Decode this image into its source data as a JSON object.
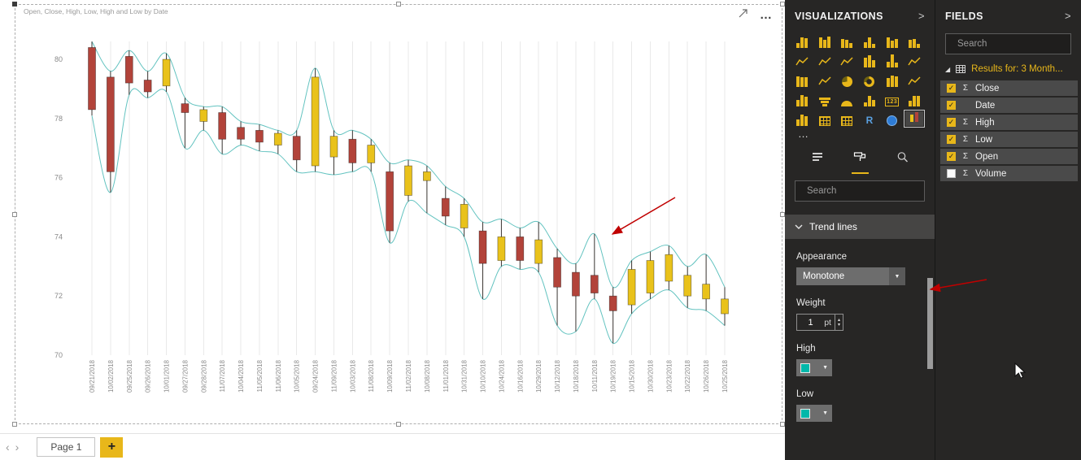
{
  "glyphs": {
    "chevron_right": ">",
    "more_options": "…",
    "icon_ellipsis": "…",
    "dropdown_arrow": "▼",
    "spinner_up": "▴",
    "spinner_down": "▾",
    "check": "✓",
    "sigma": "Σ",
    "expand_triangle": "◢",
    "nav_prev": "‹",
    "nav_next": "›"
  },
  "colors": {
    "accent": "#E8B71A",
    "candle_up": "#E9C21B",
    "candle_down": "#B2433A",
    "candle_outline": "#3a3633",
    "trend_line": "#63C3C0",
    "annotation_arrow": "#C00000",
    "swatch_teal": "#01B8AA"
  },
  "canvas": {
    "page_tab_label": "Page 1",
    "add_page_label": "+"
  },
  "chart_data": {
    "type": "candlestick",
    "title": "Open, Close, High, Low, High and Low by Date",
    "ylim": [
      69.8,
      81.0
    ],
    "yticks": [
      70,
      72,
      74,
      76,
      78,
      80
    ],
    "grid": "vertical",
    "legend": "none",
    "trend_lines": {
      "upper": "High",
      "lower": "Low",
      "interpolation": "Monotone",
      "weight_pt": 1
    },
    "categories": [
      "09/21/2018",
      "10/02/2018",
      "09/25/2018",
      "09/26/2018",
      "10/01/2018",
      "09/27/2018",
      "09/28/2018",
      "11/07/2018",
      "10/04/2018",
      "11/05/2018",
      "11/06/2018",
      "10/05/2018",
      "09/24/2018",
      "11/09/2018",
      "10/03/2018",
      "11/08/2018",
      "10/09/2018",
      "11/02/2018",
      "10/08/2018",
      "11/01/2018",
      "10/31/2018",
      "10/10/2018",
      "10/24/2018",
      "10/16/2018",
      "10/29/2018",
      "10/12/2018",
      "10/18/2018",
      "10/11/2018",
      "10/19/2018",
      "10/15/2018",
      "10/30/2018",
      "10/23/2018",
      "10/22/2018",
      "10/26/2018",
      "10/25/2018"
    ],
    "open": [
      80.4,
      79.4,
      80.1,
      79.3,
      79.1,
      78.5,
      77.9,
      78.2,
      77.7,
      77.6,
      77.1,
      77.4,
      76.4,
      76.7,
      77.3,
      76.5,
      76.2,
      75.4,
      75.9,
      75.3,
      74.3,
      74.2,
      73.2,
      74.0,
      73.1,
      73.3,
      72.8,
      72.7,
      72.0,
      71.7,
      72.1,
      72.5,
      72.0,
      71.9,
      71.4
    ],
    "high": [
      80.6,
      79.6,
      80.3,
      79.6,
      80.2,
      78.7,
      78.4,
      78.4,
      77.9,
      77.8,
      77.6,
      77.6,
      79.7,
      77.6,
      77.6,
      77.3,
      76.5,
      76.6,
      76.4,
      75.7,
      75.3,
      74.5,
      74.6,
      74.3,
      74.5,
      73.6,
      73.1,
      74.1,
      72.3,
      73.2,
      73.5,
      73.7,
      73.0,
      73.4,
      72.3
    ],
    "low": [
      78.1,
      75.5,
      78.8,
      78.7,
      78.9,
      77.0,
      77.6,
      76.8,
      77.1,
      76.9,
      76.8,
      76.2,
      76.2,
      76.1,
      76.2,
      76.2,
      73.8,
      75.2,
      74.8,
      74.4,
      74.0,
      71.9,
      73.0,
      72.9,
      72.8,
      71.0,
      70.8,
      71.9,
      70.4,
      71.4,
      71.9,
      72.2,
      71.6,
      71.5,
      71.0
    ],
    "close": [
      78.3,
      76.2,
      79.2,
      78.9,
      80.0,
      78.2,
      78.3,
      77.3,
      77.3,
      77.2,
      77.5,
      76.6,
      79.4,
      77.4,
      76.5,
      77.1,
      74.2,
      76.4,
      76.2,
      74.7,
      75.1,
      73.1,
      74.0,
      73.2,
      73.9,
      72.3,
      72.0,
      72.1,
      71.5,
      72.9,
      73.2,
      73.4,
      72.7,
      72.4,
      71.9
    ]
  },
  "visualizations": {
    "title": "VISUALIZATIONS",
    "search_placeholder": "Search",
    "icons": [
      {
        "name": "stacked-bar-chart"
      },
      {
        "name": "stacked-column-chart"
      },
      {
        "name": "clustered-bar-chart"
      },
      {
        "name": "clustered-column-chart"
      },
      {
        "name": "100-stacked-bar-chart"
      },
      {
        "name": "100-stacked-column-chart"
      },
      {
        "name": "line-chart"
      },
      {
        "name": "area-chart"
      },
      {
        "name": "stacked-area-chart"
      },
      {
        "name": "line-and-stacked-column-chart"
      },
      {
        "name": "line-and-clustered-column-chart"
      },
      {
        "name": "ribbon-chart"
      },
      {
        "name": "waterfall-chart"
      },
      {
        "name": "scatter-chart"
      },
      {
        "name": "pie-chart"
      },
      {
        "name": "donut-chart"
      },
      {
        "name": "treemap"
      },
      {
        "name": "map"
      },
      {
        "name": "filled-map"
      },
      {
        "name": "funnel"
      },
      {
        "name": "gauge"
      },
      {
        "name": "multi-row-card"
      },
      {
        "name": "card-123"
      },
      {
        "name": "kpi"
      },
      {
        "name": "slicer"
      },
      {
        "name": "table"
      },
      {
        "name": "matrix"
      },
      {
        "name": "r-script-visual"
      },
      {
        "name": "arcgis-map"
      },
      {
        "name": "candlestick-visual",
        "selected": true
      }
    ],
    "tabs": [
      {
        "name": "fields-pane-tab",
        "active": false
      },
      {
        "name": "format-pane-tab",
        "active": true
      },
      {
        "name": "analytics-pane-tab",
        "active": false
      }
    ],
    "trend_lines_section": {
      "label": "Trend lines",
      "appearance_label": "Appearance",
      "appearance_value": "Monotone",
      "weight_label": "Weight",
      "weight_value": "1",
      "weight_unit": "pt",
      "high_label": "High",
      "low_label": "Low"
    }
  },
  "fields": {
    "title": "FIELDS",
    "search_placeholder": "Search",
    "table_label": "Results for: 3 Month...",
    "items": [
      {
        "label": "Close",
        "checked": true,
        "aggregate": true
      },
      {
        "label": "Date",
        "checked": true,
        "aggregate": false
      },
      {
        "label": "High",
        "checked": true,
        "aggregate": true
      },
      {
        "label": "Low",
        "checked": true,
        "aggregate": true
      },
      {
        "label": "Open",
        "checked": true,
        "aggregate": true
      },
      {
        "label": "Volume",
        "checked": false,
        "aggregate": true
      }
    ]
  }
}
